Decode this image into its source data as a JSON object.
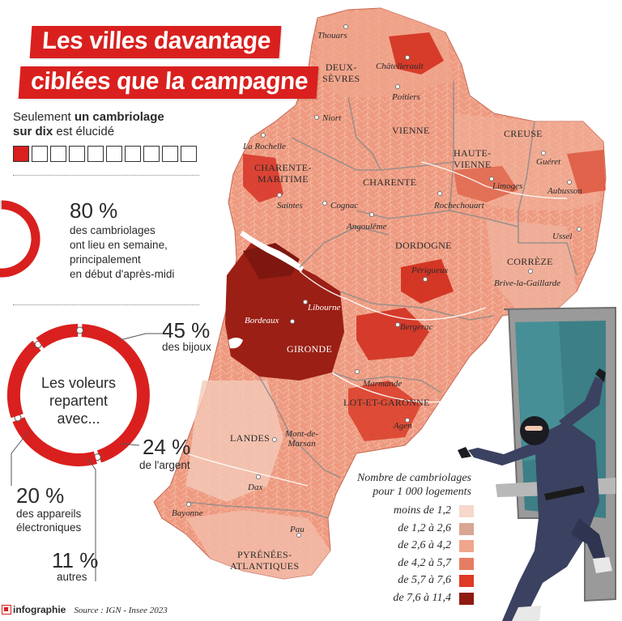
{
  "title": {
    "line1": "Les villes davantage",
    "line2": "ciblées que la campagne"
  },
  "intro": {
    "prefix": "Seulement ",
    "bold": "un cambriolage sur dix",
    "suffix": " est élucidé",
    "boxes_total": 10,
    "boxes_filled": 1
  },
  "weekday_stat": {
    "value": "80 %",
    "line1": "des cambriolages",
    "line2": "ont lieu en semaine,",
    "line3": "principalement",
    "line4": "en début d'après-midi",
    "fraction": 0.8
  },
  "loot": {
    "center_line1": "Les voleurs",
    "center_line2": "repartent",
    "center_line3": "avec...",
    "items": [
      {
        "value": "45 %",
        "label": "des bijoux",
        "share": 45
      },
      {
        "value": "24 %",
        "label": "de l'argent",
        "share": 24
      },
      {
        "value": "20 %",
        "label_line1": "des appareils",
        "label_line2": "électroniques",
        "share": 20
      },
      {
        "value": "11 %",
        "label": "autres",
        "share": 11
      }
    ]
  },
  "departments": [
    {
      "id": "deux-sevres",
      "line1": "DEUX-",
      "line2": "SÈVRES"
    },
    {
      "id": "vienne",
      "line1": "VIENNE"
    },
    {
      "id": "charente-maritime",
      "line1": "CHARENTE-",
      "line2": "MARITIME"
    },
    {
      "id": "charente",
      "line1": "CHARENTE"
    },
    {
      "id": "haute-vienne",
      "line1": "HAUTE-",
      "line2": "VIENNE"
    },
    {
      "id": "creuse",
      "line1": "CREUSE"
    },
    {
      "id": "dordogne",
      "line1": "DORDOGNE"
    },
    {
      "id": "correze",
      "line1": "CORRÈZE"
    },
    {
      "id": "gironde",
      "line1": "GIRONDE"
    },
    {
      "id": "lot-et-garonne",
      "line1": "LOT-ET-GARONNE"
    },
    {
      "id": "landes",
      "line1": "LANDES"
    },
    {
      "id": "pyrenees-atlantiques",
      "line1": "PYRÉNÉES-",
      "line2": "ATLANTIQUES"
    }
  ],
  "cities": [
    {
      "id": "thouars",
      "name": "Thouars"
    },
    {
      "id": "chatellerault",
      "name": "Châtellerault"
    },
    {
      "id": "poitiers",
      "name": "Poitiers"
    },
    {
      "id": "niort",
      "name": "Niort"
    },
    {
      "id": "la-rochelle",
      "name": "La Rochelle"
    },
    {
      "id": "gueret",
      "name": "Guéret"
    },
    {
      "id": "limoges",
      "name": "Limoges"
    },
    {
      "id": "aubusson",
      "name": "Aubusson"
    },
    {
      "id": "saintes",
      "name": "Saintes"
    },
    {
      "id": "cognac",
      "name": "Cognac"
    },
    {
      "id": "angouleme",
      "name": "Angoulême"
    },
    {
      "id": "rochechouart",
      "name": "Rochechouart"
    },
    {
      "id": "ussel",
      "name": "Ussel"
    },
    {
      "id": "perigueux",
      "name": "Périgueux"
    },
    {
      "id": "brive",
      "name": "Brive-la-Gaillarde"
    },
    {
      "id": "libourne",
      "name": "Libourne"
    },
    {
      "id": "bordeaux",
      "name": "Bordeaux"
    },
    {
      "id": "bergerac",
      "name": "Bergerac"
    },
    {
      "id": "marmande",
      "name": "Marmande"
    },
    {
      "id": "agen",
      "name": "Agen"
    },
    {
      "id": "mont-de-marsan",
      "line1": "Mont-de-",
      "line2": "Marsan"
    },
    {
      "id": "dax",
      "name": "Dax"
    },
    {
      "id": "bayonne",
      "name": "Bayonne"
    },
    {
      "id": "pau",
      "name": "Pau"
    }
  ],
  "legend": {
    "title_line1": "Nombre de cambriolages",
    "title_line2": "pour 1 000 logements",
    "classes": [
      {
        "label": "moins de 1,2",
        "color": "#f6d8cc"
      },
      {
        "label": "de 1,2 à 2,6",
        "color": "#d9a594"
      },
      {
        "label": "de 2,6 à 4,2",
        "color": "#f0a68c"
      },
      {
        "label": "de 4,2 à 5,7",
        "color": "#e67d62"
      },
      {
        "label": "de 5,7 à 7,6",
        "color": "#dd3b26"
      },
      {
        "label": "de 7,6 à 11,4",
        "color": "#8f1a12"
      }
    ]
  },
  "footer": {
    "brand": "infographie",
    "source": "Source : IGN - Insee 2023"
  },
  "colors": {
    "accent": "#d9201e",
    "donut_bg": "#d6d6d6"
  }
}
